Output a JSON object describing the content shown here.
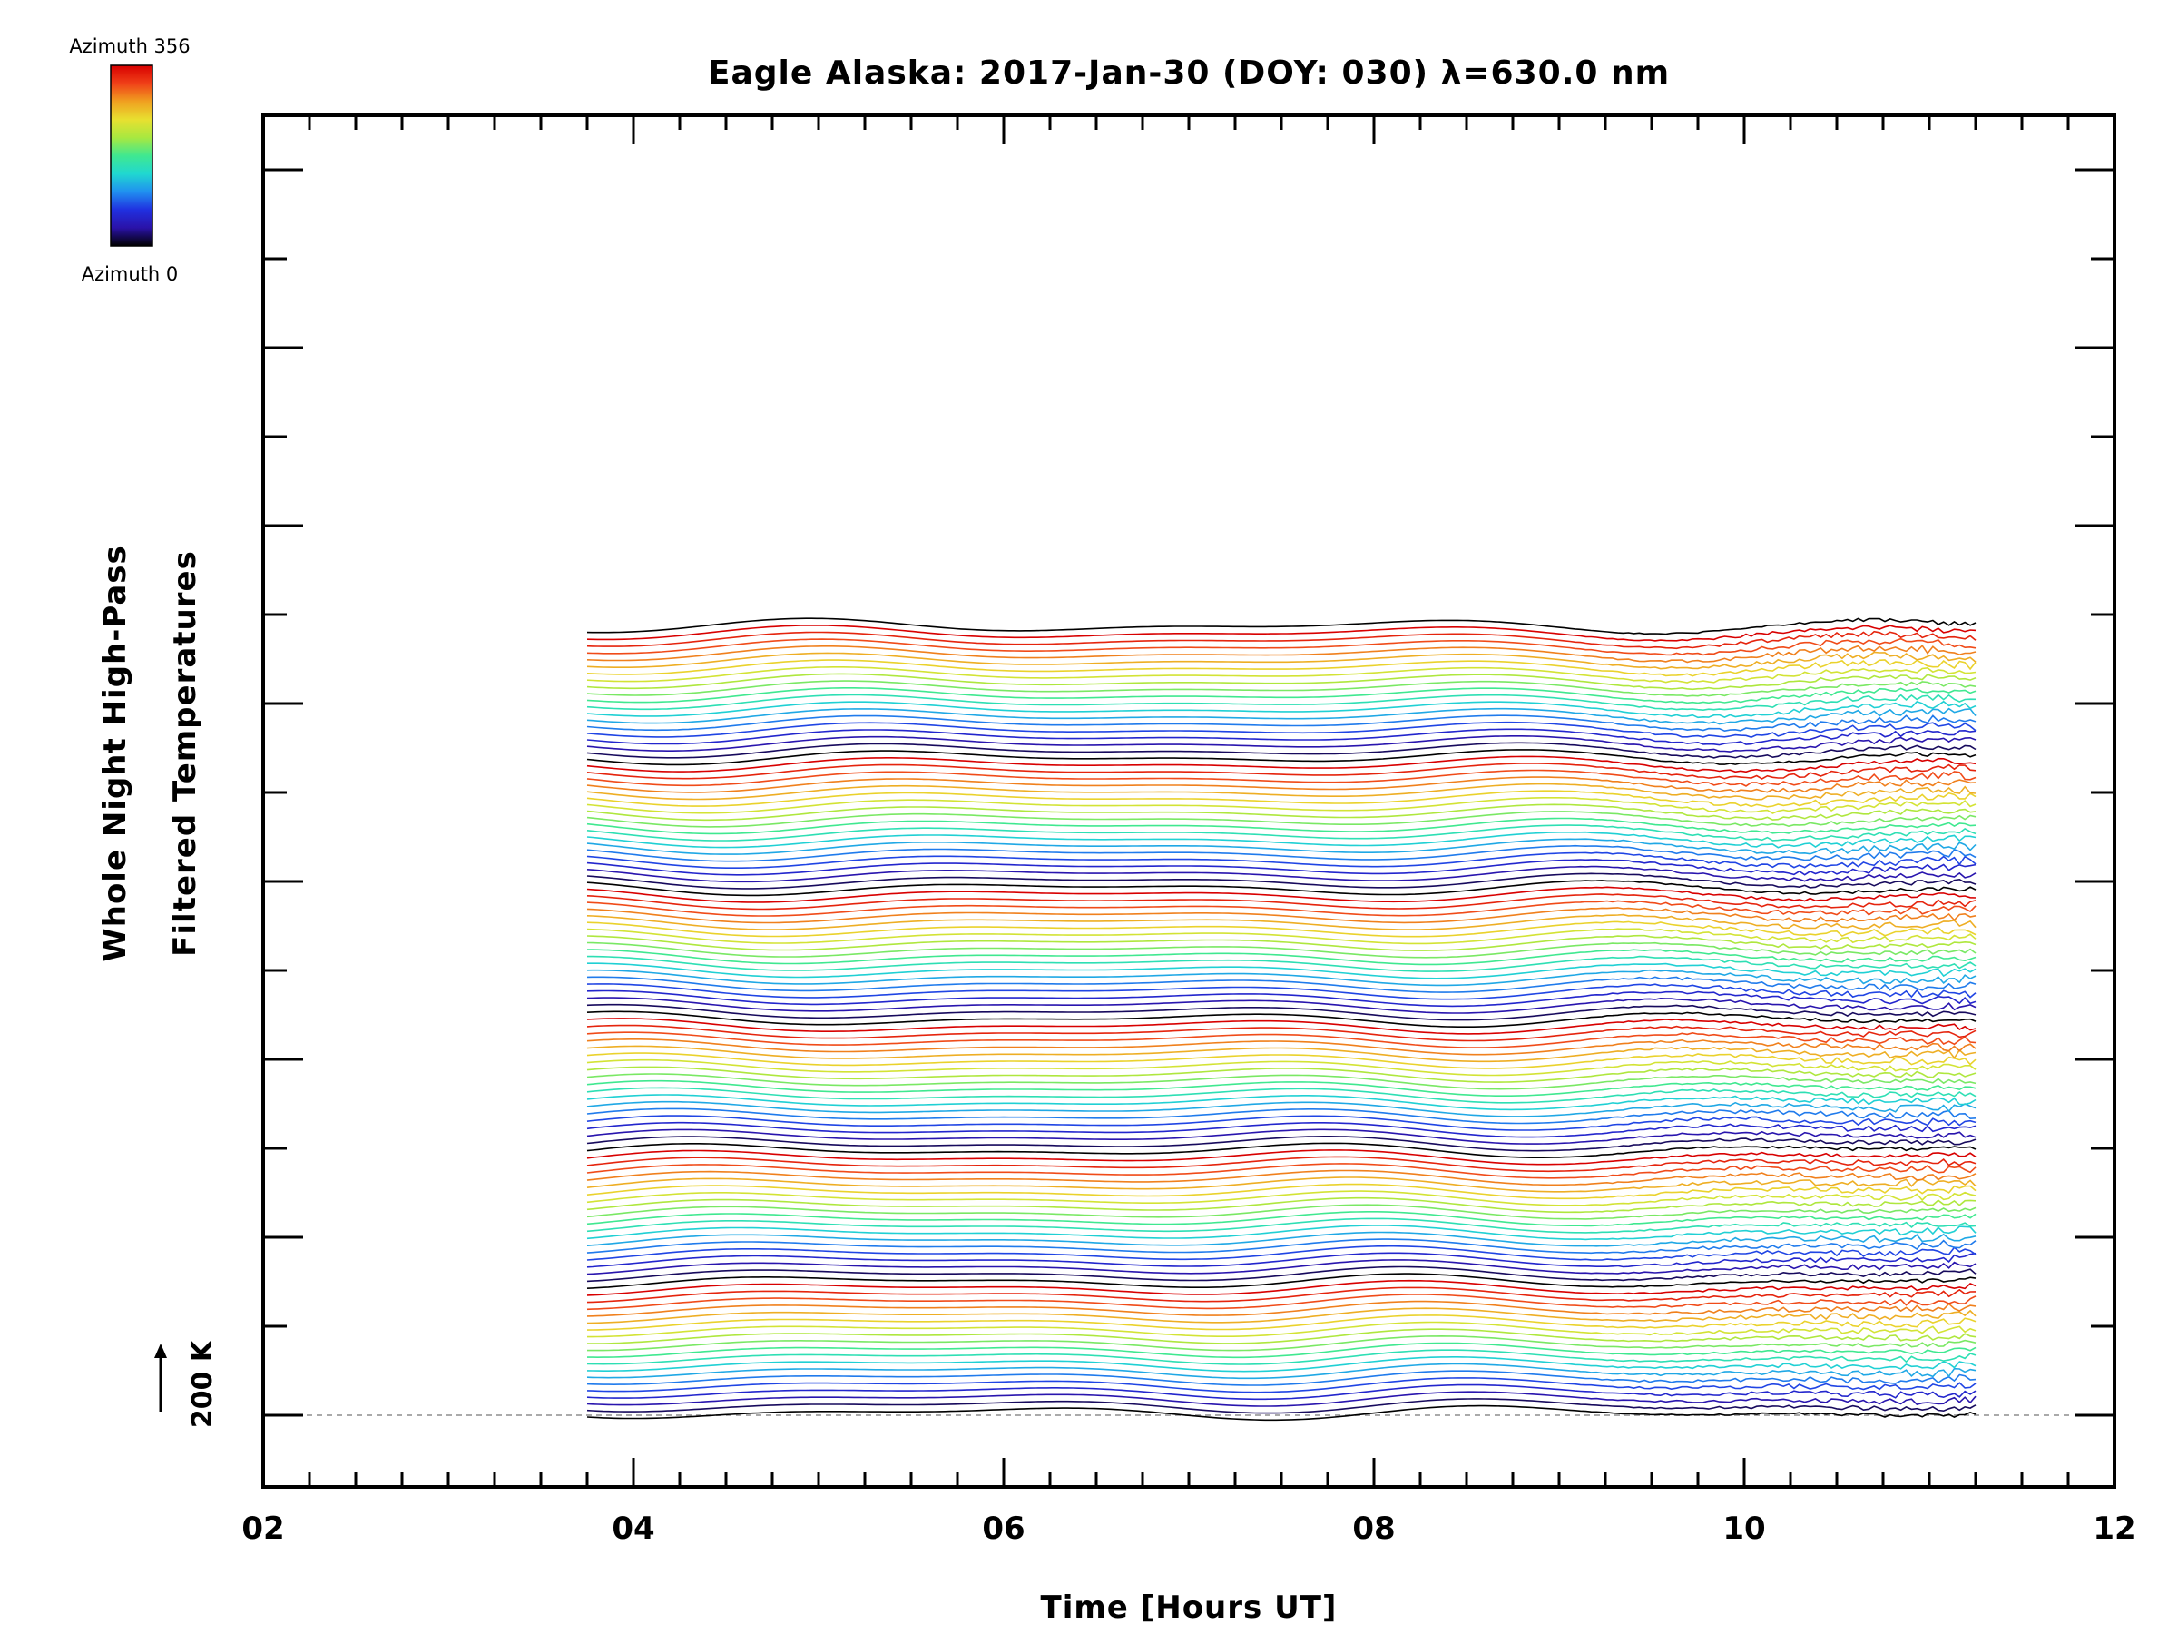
{
  "chart_data": {
    "type": "line",
    "title": "Eagle Alaska: 2017-Jan-30 (DOY: 030) λ=630.0 nm",
    "xlabel": "Time [Hours UT]",
    "ylabel_line1": "Whole Night High-Pass",
    "ylabel_line2": "Filtered Temperatures",
    "xlim": [
      2,
      12
    ],
    "x_tick_labels": [
      "02",
      "04",
      "06",
      "08",
      "10",
      "12"
    ],
    "x_tick_values": [
      2,
      4,
      6,
      8,
      10,
      12
    ],
    "data_time_range": [
      3.75,
      11.25
    ],
    "series_count": 115,
    "series_spacing_K": 15,
    "scale_bar_label": "200 K",
    "colorbar": {
      "top_label": "Azimuth 356",
      "bottom_label": "Azimuth 0",
      "range": [
        0,
        356
      ],
      "colors": [
        "#000000",
        "#2a12a8",
        "#2030e0",
        "#2090f0",
        "#20d8d0",
        "#40e890",
        "#a8e840",
        "#e8e030",
        "#f0a020",
        "#f04018",
        "#d80000"
      ]
    },
    "grid": false,
    "legend": "none"
  }
}
